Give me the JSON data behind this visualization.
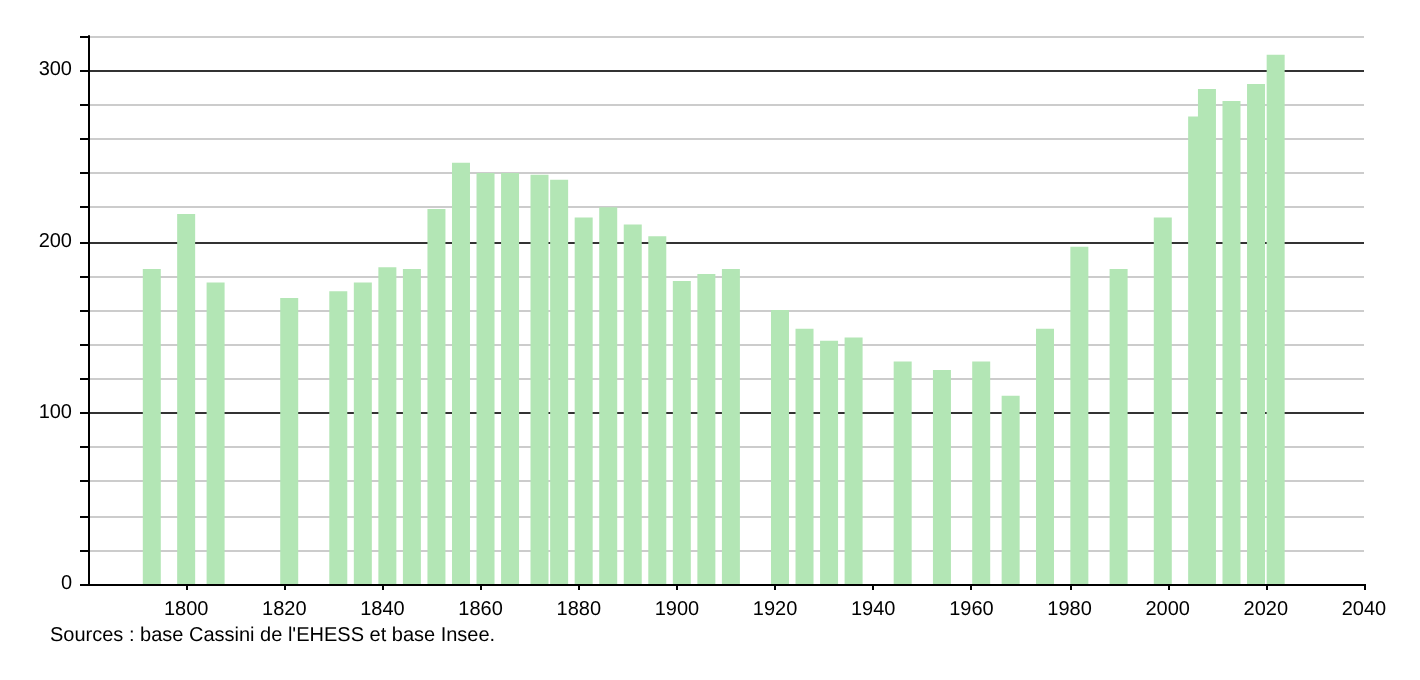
{
  "chart_data": {
    "type": "bar",
    "x": [
      1793,
      1800,
      1806,
      1821,
      1831,
      1836,
      1841,
      1846,
      1851,
      1856,
      1861,
      1866,
      1872,
      1876,
      1881,
      1886,
      1891,
      1896,
      1901,
      1906,
      1911,
      1921,
      1926,
      1931,
      1936,
      1946,
      1954,
      1962,
      1968,
      1975,
      1982,
      1990,
      1999,
      2006,
      2008,
      2013,
      2018,
      2022
    ],
    "values": [
      184,
      216,
      176,
      167,
      171,
      176,
      185,
      184,
      219,
      246,
      240,
      240,
      239,
      236,
      214,
      220,
      210,
      203,
      177,
      181,
      184,
      160,
      149,
      142,
      144,
      130,
      125,
      130,
      110,
      149,
      197,
      184,
      214,
      273,
      289,
      282,
      292,
      309
    ],
    "color": "#b3e6b5",
    "xlim": [
      1780,
      2040
    ],
    "xticks": [
      1800,
      1820,
      1840,
      1860,
      1880,
      1900,
      1920,
      1940,
      1960,
      1980,
      2000,
      2020,
      2040
    ],
    "ylim": [
      0,
      320
    ],
    "yticks": [
      0,
      {
        "value": 20,
        "label": null
      },
      {
        "value": 40,
        "label": null
      },
      {
        "value": 60,
        "label": null
      },
      {
        "value": 80,
        "label": null
      },
      100,
      {
        "value": 120,
        "label": null
      },
      {
        "value": 140,
        "label": null
      },
      {
        "value": 160,
        "label": null
      },
      {
        "value": 180,
        "label": null
      },
      200,
      {
        "value": 220,
        "label": null
      },
      {
        "value": 240,
        "label": null
      },
      {
        "value": 260,
        "label": null
      },
      {
        "value": 280,
        "label": null
      },
      300,
      {
        "value": 320,
        "label": null
      }
    ],
    "grid": "y",
    "annotations": [
      "Sources : base Cassini de l'EHESS et base Insee."
    ]
  }
}
